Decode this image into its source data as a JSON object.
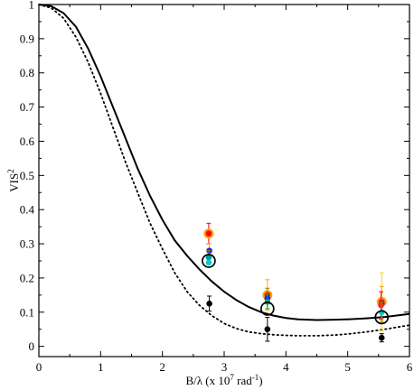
{
  "chart_data": {
    "type": "scatter",
    "title": "",
    "xlabel": "B/λ (x 10",
    "xlabel_sup": "7",
    "xlabel_tail": " rad",
    "xlabel_sup2": "-1",
    "xlabel_end": ")",
    "ylabel": "VIS",
    "ylabel_sup": "2",
    "xlim": [
      0,
      6
    ],
    "ylim": [
      -0.03,
      1.0
    ],
    "xticks": [
      0,
      1,
      2,
      3,
      4,
      5,
      6
    ],
    "yticks": [
      0,
      0.1,
      0.2,
      0.3,
      0.4,
      0.5,
      0.6,
      0.7,
      0.8,
      0.9,
      1
    ],
    "xtick_labels": [
      "0",
      "1",
      "2",
      "3",
      "4",
      "5",
      "6"
    ],
    "ytick_labels": [
      "0",
      "0.1",
      "0.2",
      "0.3",
      "0.4",
      "0.5",
      "0.6",
      "0.7",
      "0.8",
      "0.9",
      "1"
    ],
    "grid": false,
    "legend": "none",
    "curves": [
      {
        "style": "solid",
        "color": "#000000",
        "x": [
          0,
          0.2,
          0.4,
          0.6,
          0.8,
          1.0,
          1.2,
          1.4,
          1.6,
          1.8,
          2.0,
          2.2,
          2.4,
          2.6,
          2.8,
          3.0,
          3.2,
          3.4,
          3.6,
          3.8,
          4.0,
          4.2,
          4.5,
          4.8,
          5.0,
          5.3,
          5.6,
          6.0
        ],
        "y": [
          1.0,
          0.995,
          0.975,
          0.935,
          0.87,
          0.79,
          0.7,
          0.61,
          0.52,
          0.44,
          0.37,
          0.31,
          0.265,
          0.225,
          0.19,
          0.16,
          0.135,
          0.115,
          0.1,
          0.09,
          0.083,
          0.079,
          0.077,
          0.078,
          0.079,
          0.082,
          0.086,
          0.095
        ]
      },
      {
        "style": "dotted",
        "color": "#000000",
        "x": [
          0,
          0.2,
          0.4,
          0.6,
          0.8,
          1.0,
          1.2,
          1.4,
          1.6,
          1.8,
          2.0,
          2.2,
          2.4,
          2.6,
          2.8,
          3.0,
          3.2,
          3.4,
          3.6,
          3.8,
          4.0,
          4.2,
          4.5,
          4.8,
          5.0,
          5.3,
          5.6,
          6.0
        ],
        "y": [
          1.0,
          0.99,
          0.96,
          0.905,
          0.83,
          0.74,
          0.64,
          0.54,
          0.45,
          0.36,
          0.285,
          0.215,
          0.16,
          0.12,
          0.09,
          0.067,
          0.052,
          0.042,
          0.037,
          0.034,
          0.032,
          0.031,
          0.031,
          0.033,
          0.036,
          0.042,
          0.05,
          0.062
        ]
      }
    ],
    "points": [
      {
        "x": 2.75,
        "y": 0.33,
        "err": 0.03,
        "color": "#ff0000",
        "ring": "#ffa500",
        "errcolor": "#ff0000"
      },
      {
        "x": 2.76,
        "y": 0.28,
        "err": 0.02,
        "color": "#2020ff",
        "ring": "",
        "errcolor": "#ff9900"
      },
      {
        "x": 2.75,
        "y": 0.26,
        "err": 0.02,
        "color": "#00a0a0",
        "ring": "",
        "errcolor": "#888800"
      },
      {
        "x": 2.75,
        "y": 0.245,
        "err": 0.0,
        "color": "#00cccc",
        "ring": "",
        "errcolor": "#000000"
      },
      {
        "x": 2.76,
        "y": 0.125,
        "err": 0.022,
        "color": "#000000",
        "ring": "",
        "errcolor": "#000000"
      },
      {
        "x": 3.7,
        "y": 0.15,
        "err": 0.045,
        "color": "#ff0000",
        "ring": "#ffa500",
        "errcolor": "#ffa500"
      },
      {
        "x": 3.7,
        "y": 0.14,
        "err": 0.03,
        "color": "#2020ff",
        "ring": "",
        "errcolor": "#888800"
      },
      {
        "x": 3.7,
        "y": 0.13,
        "err": 0.02,
        "color": "#00aa66",
        "ring": "",
        "errcolor": "#00aa00"
      },
      {
        "x": 3.7,
        "y": 0.05,
        "err": 0.035,
        "color": "#000000",
        "ring": "",
        "errcolor": "#000000"
      },
      {
        "x": 5.55,
        "y": 0.13,
        "err": 0.085,
        "color": "#ff0000",
        "ring": "#ffa500",
        "errcolor": "#ffd700"
      },
      {
        "x": 5.55,
        "y": 0.125,
        "err": 0.05,
        "color": "#2020ff",
        "ring": "",
        "errcolor": "#ff9900"
      },
      {
        "x": 5.54,
        "y": 0.12,
        "err": 0.04,
        "color": "#ff2222",
        "ring": "",
        "errcolor": "#ff0000"
      },
      {
        "x": 5.55,
        "y": 0.1,
        "err": 0.03,
        "color": "#00cccc",
        "ring": "",
        "errcolor": "#888800"
      },
      {
        "x": 5.55,
        "y": 0.025,
        "err": 0.012,
        "color": "#000000",
        "ring": "",
        "errcolor": "#000000"
      }
    ],
    "open_circles": [
      {
        "x": 2.75,
        "y": 0.25
      },
      {
        "x": 3.7,
        "y": 0.11
      },
      {
        "x": 5.55,
        "y": 0.085
      }
    ]
  }
}
